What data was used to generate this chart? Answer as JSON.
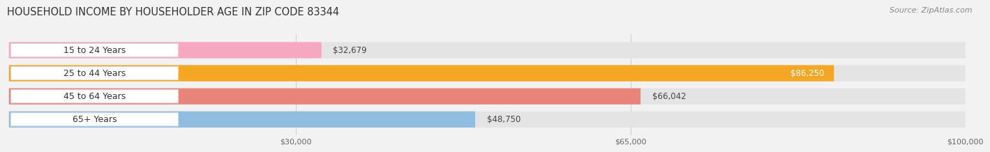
{
  "title": "HOUSEHOLD INCOME BY HOUSEHOLDER AGE IN ZIP CODE 83344",
  "source": "Source: ZipAtlas.com",
  "categories": [
    "15 to 24 Years",
    "25 to 44 Years",
    "45 to 64 Years",
    "65+ Years"
  ],
  "values": [
    32679,
    86250,
    66042,
    48750
  ],
  "bar_colors": [
    "#f5a8c0",
    "#f5a623",
    "#e8847a",
    "#90bde0"
  ],
  "value_labels": [
    "$32,679",
    "$86,250",
    "$66,042",
    "$48,750"
  ],
  "value_inside": [
    false,
    true,
    false,
    false
  ],
  "xmax": 100000,
  "xticks": [
    30000,
    65000,
    100000
  ],
  "xtick_labels": [
    "$30,000",
    "$65,000",
    "$100,000"
  ],
  "bg_color": "#f2f2f2",
  "bar_bg_color": "#e4e4e4",
  "pill_bg_color": "#ffffff",
  "title_fontsize": 10.5,
  "source_fontsize": 8,
  "label_fontsize": 9,
  "value_fontsize": 8.5
}
